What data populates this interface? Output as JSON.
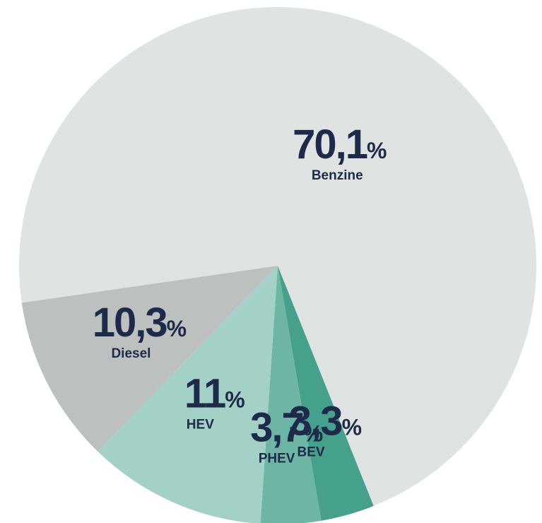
{
  "chart_data": {
    "type": "pie",
    "categories": [
      "Benzine",
      "BEV",
      "PHEV",
      "HEV",
      "Diesel"
    ],
    "values": [
      70.1,
      3.3,
      3.7,
      11,
      10.3
    ],
    "value_labels": [
      "70,1%",
      "3,3%",
      "3,7%",
      "11%",
      "10,3%"
    ],
    "colors": [
      "#dfe4e3",
      "#45a08c",
      "#6db5a5",
      "#a3d1c6",
      "#bcc1bf"
    ]
  }
}
